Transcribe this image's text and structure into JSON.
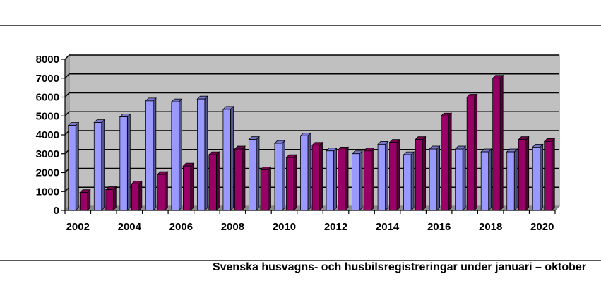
{
  "caption": "Svenska husvagns- och husbilsregistreringar under januari – oktober",
  "chart_data": {
    "type": "bar",
    "style": "3d-clustered",
    "categories": [
      "2002",
      "2003",
      "2004",
      "2005",
      "2006",
      "2007",
      "2008",
      "2009",
      "2010",
      "2011",
      "2012",
      "2013",
      "2014",
      "2015",
      "2016",
      "2017",
      "2018",
      "2019",
      "2020"
    ],
    "x_tick_labels": [
      "2002",
      "2004",
      "2006",
      "2008",
      "2010",
      "2012",
      "2014",
      "2016",
      "2018",
      "2020"
    ],
    "series": [
      {
        "values": [
          4500,
          4650,
          4950,
          5800,
          5750,
          5900,
          5350,
          3750,
          3550,
          3950,
          3150,
          3000,
          3500,
          2950,
          3250,
          3250,
          3100,
          3100,
          3350
        ],
        "color": "#9999ff"
      },
      {
        "values": [
          950,
          1100,
          1400,
          1900,
          2350,
          2950,
          3250,
          2150,
          2800,
          3450,
          3200,
          3150,
          3600,
          3750,
          5000,
          6000,
          7000,
          3750,
          3650
        ],
        "color": "#990066"
      }
    ],
    "ylim": [
      0,
      8000
    ],
    "y_ticks": [
      0,
      1000,
      2000,
      3000,
      4000,
      5000,
      6000,
      7000,
      8000
    ],
    "grid": true,
    "plot_background": "#c0c0c0",
    "legend": "none"
  }
}
